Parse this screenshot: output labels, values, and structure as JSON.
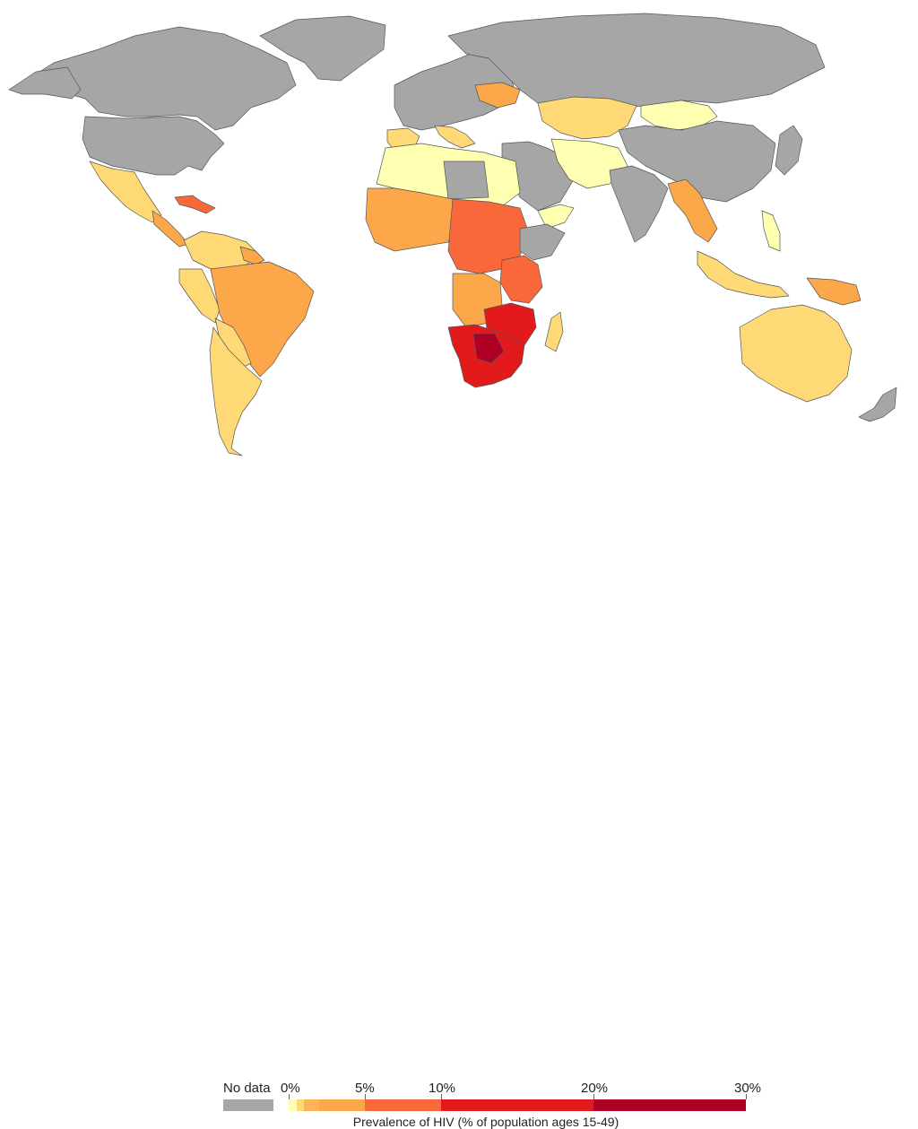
{
  "colors": {
    "no_data": "#a6a6a6",
    "ocean": "#ffffff",
    "border": "#555555",
    "bin_0_1": "#ffffb2",
    "bin_1_2": "#fed976",
    "bin_2_5": "#fca74a",
    "bin_5_10": "#f8683a",
    "bin_10_20": "#e31a1c",
    "bin_20_30": "#b10026"
  },
  "legend": {
    "no_data_label": "No data",
    "ticks": [
      "0%",
      "5%",
      "10%",
      "20%",
      "30%"
    ],
    "caption": "Prevalence of HIV (% of population ages 15-49)",
    "bins": [
      {
        "from": 0,
        "to": 0.5,
        "color": "#ffffb2"
      },
      {
        "from": 0.5,
        "to": 1,
        "color": "#fed976"
      },
      {
        "from": 1,
        "to": 2,
        "color": "#fdb35a"
      },
      {
        "from": 2,
        "to": 5,
        "color": "#fca74a"
      },
      {
        "from": 5,
        "to": 10,
        "color": "#f8683a"
      },
      {
        "from": 10,
        "to": 20,
        "color": "#e31a1c"
      },
      {
        "from": 20,
        "to": 30,
        "color": "#b10026"
      }
    ]
  }
}
